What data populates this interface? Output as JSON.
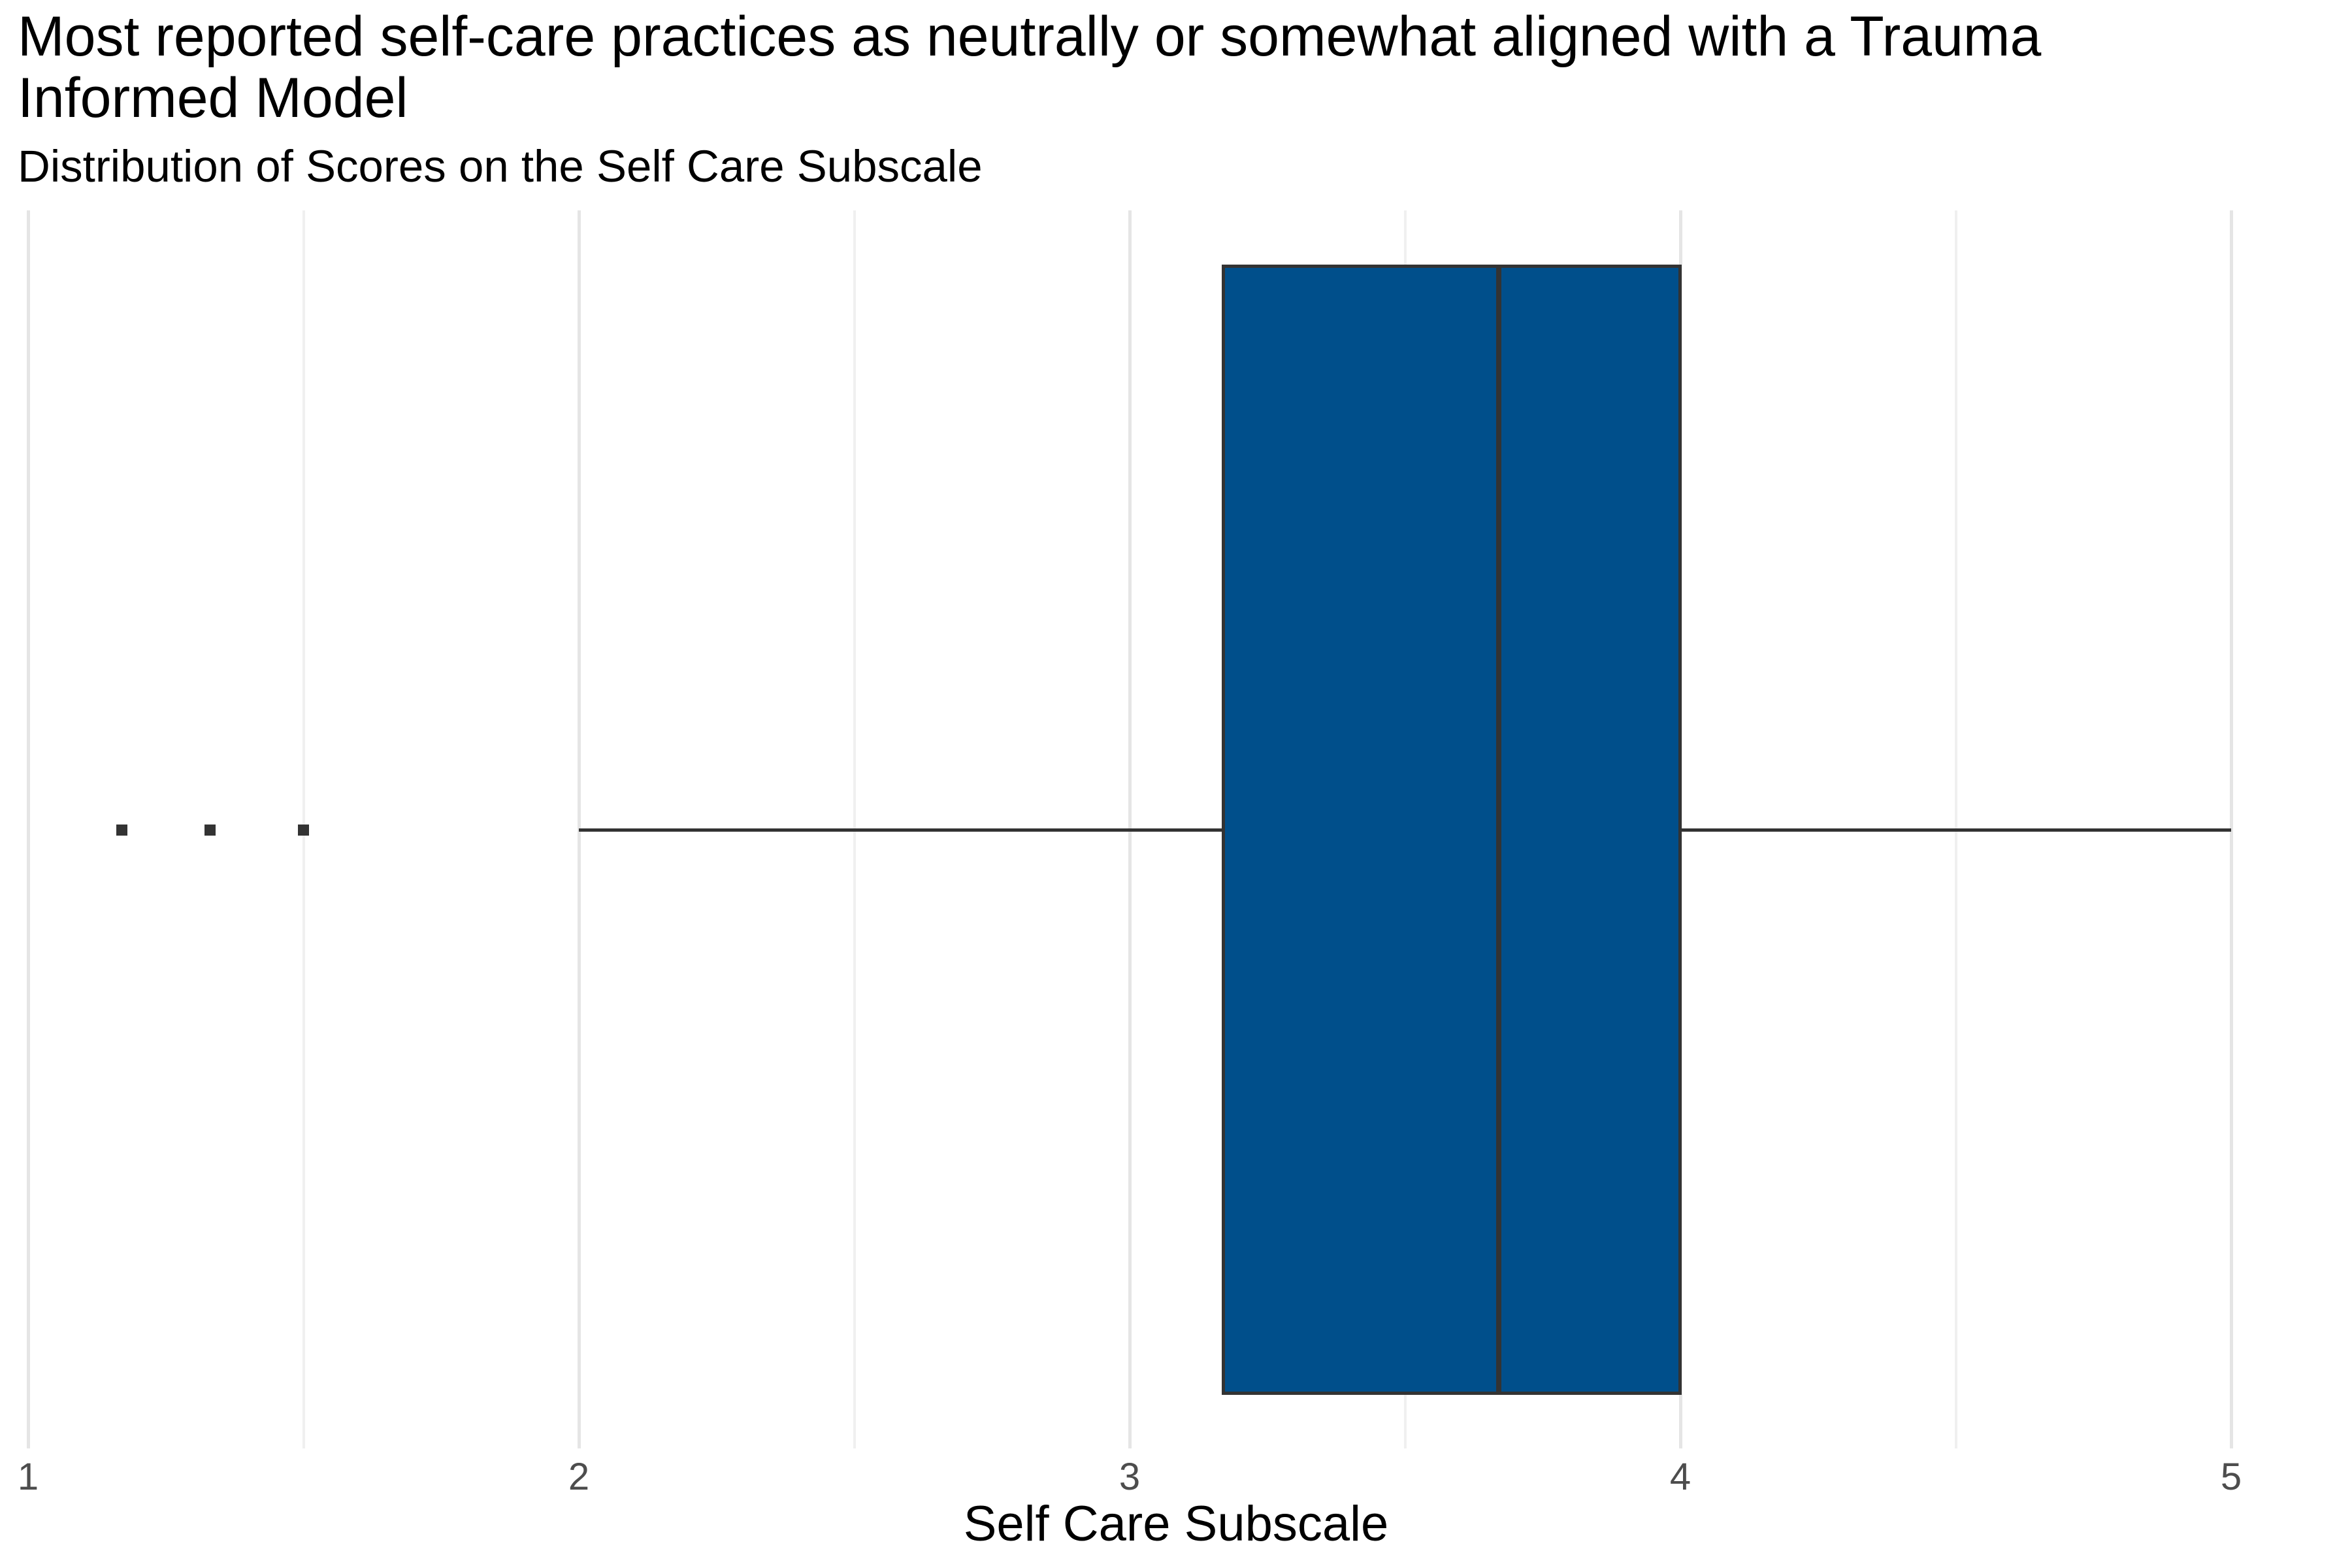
{
  "chart_data": {
    "type": "boxplot",
    "orientation": "horizontal",
    "title": "Most reported self-care practices as neutrally or somewhat aligned with a Trauma Informed Model",
    "title_lines": [
      "Most reported self-care practices as neutrally or somewhat aligned with a Trauma",
      "Informed Model"
    ],
    "subtitle": "Distribution of Scores on the Self Care Subscale",
    "xlabel": "Self Care Subscale",
    "x_ticks": [
      {
        "value": 1,
        "label": "1"
      },
      {
        "value": 2,
        "label": "2"
      },
      {
        "value": 3,
        "label": "3"
      },
      {
        "value": 4,
        "label": "4"
      },
      {
        "value": 5,
        "label": "5"
      }
    ],
    "x_range_shown": [
      0.95,
      5.22
    ],
    "grid_major": [
      1,
      2,
      3,
      4,
      5
    ],
    "grid_minor": [
      1.5,
      2.5,
      3.5,
      4.5
    ],
    "legend": "none",
    "series": [
      {
        "name": "Self Care Subscale",
        "whisker_min": 2.0,
        "q1": 3.17,
        "median": 3.67,
        "q3": 4.0,
        "whisker_max": 5.0,
        "outliers": [
          1.17,
          1.33,
          1.5
        ]
      }
    ],
    "colors": {
      "box_fill": "#004F8B",
      "box_border": "#333333",
      "whisker": "#333333",
      "median": "#333333",
      "outlier": "#333333",
      "tick_label": "#4D4D4D",
      "axis_title": "#000000",
      "title": "#000000",
      "grid_major": "#E5E5E5",
      "grid_minor": "#F0F0F0",
      "background": "#FFFFFF"
    }
  }
}
